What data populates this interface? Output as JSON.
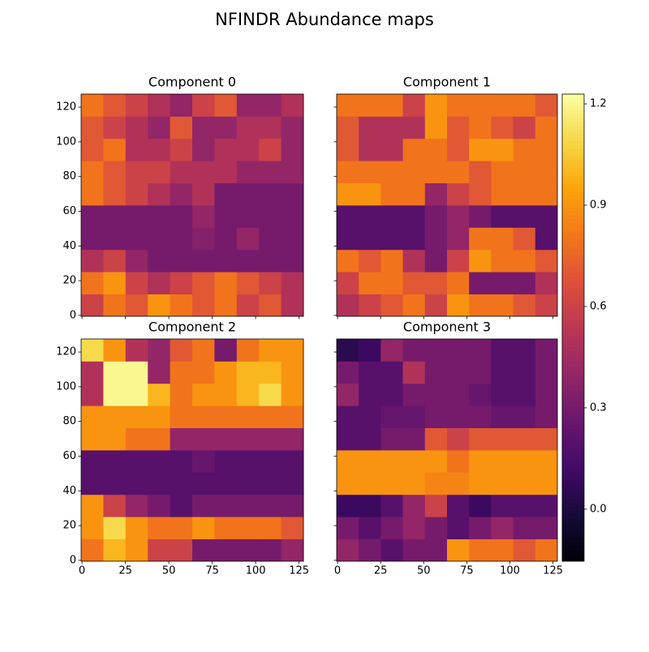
{
  "title": "NFINDR Abundance maps",
  "chart_data": [
    {
      "type": "heatmap",
      "title": "Component 0",
      "xlim": [
        -0.5,
        127.5
      ],
      "ylim": [
        -0.5,
        127.5
      ],
      "xticks": [
        0,
        25,
        50,
        75,
        100,
        125
      ],
      "yticks": [
        0,
        20,
        40,
        60,
        80,
        100,
        120
      ],
      "show_xticklabels": false,
      "show_yticklabels": true,
      "z": [
        [
          0.6,
          0.8,
          0.7,
          0.9,
          0.8,
          0.7,
          0.8,
          0.6,
          0.7,
          0.5
        ],
        [
          0.8,
          0.9,
          0.6,
          0.5,
          0.6,
          0.7,
          0.8,
          0.7,
          0.6,
          0.5
        ],
        [
          0.5,
          0.6,
          0.4,
          0.3,
          0.3,
          0.3,
          0.3,
          0.3,
          0.3,
          0.3
        ],
        [
          0.3,
          0.3,
          0.3,
          0.3,
          0.3,
          0.35,
          0.3,
          0.4,
          0.3,
          0.3
        ],
        [
          0.3,
          0.3,
          0.3,
          0.3,
          0.3,
          0.4,
          0.3,
          0.3,
          0.3,
          0.3
        ],
        [
          0.8,
          0.7,
          0.6,
          0.5,
          0.4,
          0.5,
          0.3,
          0.3,
          0.3,
          0.3
        ],
        [
          0.8,
          0.7,
          0.6,
          0.6,
          0.5,
          0.5,
          0.5,
          0.4,
          0.4,
          0.4
        ],
        [
          0.7,
          0.8,
          0.5,
          0.5,
          0.6,
          0.4,
          0.5,
          0.5,
          0.6,
          0.4
        ],
        [
          0.7,
          0.6,
          0.5,
          0.4,
          0.7,
          0.4,
          0.4,
          0.5,
          0.5,
          0.4
        ],
        [
          0.8,
          0.7,
          0.6,
          0.5,
          0.4,
          0.6,
          0.7,
          0.4,
          0.4,
          0.5
        ]
      ]
    },
    {
      "type": "heatmap",
      "title": "Component 1",
      "xlim": [
        -0.5,
        127.5
      ],
      "ylim": [
        -0.5,
        127.5
      ],
      "xticks": [
        0,
        25,
        50,
        75,
        100,
        125
      ],
      "yticks": [
        0,
        20,
        40,
        60,
        80,
        100,
        120
      ],
      "show_xticklabels": false,
      "show_yticklabels": false,
      "z": [
        [
          0.5,
          0.6,
          0.7,
          0.8,
          0.6,
          0.9,
          0.8,
          0.8,
          0.7,
          0.6
        ],
        [
          0.6,
          0.8,
          0.8,
          0.7,
          0.7,
          0.8,
          0.3,
          0.3,
          0.3,
          0.5
        ],
        [
          0.8,
          0.7,
          0.8,
          0.5,
          0.3,
          0.6,
          0.9,
          0.8,
          0.8,
          0.7
        ],
        [
          0.2,
          0.2,
          0.2,
          0.2,
          0.3,
          0.4,
          0.8,
          0.8,
          0.7,
          0.2
        ],
        [
          0.2,
          0.2,
          0.2,
          0.2,
          0.3,
          0.4,
          0.3,
          0.2,
          0.2,
          0.2
        ],
        [
          0.9,
          0.9,
          0.8,
          0.8,
          0.4,
          0.6,
          0.7,
          0.8,
          0.8,
          0.8
        ],
        [
          0.8,
          0.8,
          0.8,
          0.8,
          0.8,
          0.8,
          0.7,
          0.8,
          0.8,
          0.8
        ],
        [
          0.7,
          0.5,
          0.5,
          0.8,
          0.8,
          0.7,
          0.9,
          0.9,
          0.8,
          0.8
        ],
        [
          0.7,
          0.5,
          0.5,
          0.5,
          0.9,
          0.7,
          0.8,
          0.7,
          0.6,
          0.8
        ],
        [
          0.8,
          0.8,
          0.8,
          0.6,
          0.9,
          0.8,
          0.8,
          0.8,
          0.8,
          0.7
        ]
      ]
    },
    {
      "type": "heatmap",
      "title": "Component 2",
      "xlim": [
        -0.5,
        127.5
      ],
      "ylim": [
        -0.5,
        127.5
      ],
      "xticks": [
        0,
        25,
        50,
        75,
        100,
        125
      ],
      "yticks": [
        0,
        20,
        40,
        60,
        80,
        100,
        120
      ],
      "show_xticklabels": true,
      "show_yticklabels": true,
      "z": [
        [
          0.8,
          1.0,
          0.9,
          0.6,
          0.6,
          0.3,
          0.3,
          0.3,
          0.3,
          0.4
        ],
        [
          0.9,
          1.1,
          0.9,
          0.8,
          0.8,
          0.9,
          0.8,
          0.8,
          0.8,
          0.7
        ],
        [
          0.9,
          0.6,
          0.4,
          0.3,
          0.2,
          0.3,
          0.3,
          0.3,
          0.3,
          0.3
        ],
        [
          0.2,
          0.2,
          0.2,
          0.2,
          0.2,
          0.2,
          0.2,
          0.2,
          0.2,
          0.2
        ],
        [
          0.2,
          0.2,
          0.2,
          0.2,
          0.2,
          0.25,
          0.2,
          0.2,
          0.2,
          0.2
        ],
        [
          0.9,
          0.9,
          0.8,
          0.8,
          0.4,
          0.4,
          0.4,
          0.4,
          0.4,
          0.4
        ],
        [
          0.9,
          0.9,
          0.9,
          0.9,
          0.8,
          0.8,
          0.8,
          0.8,
          0.8,
          0.8
        ],
        [
          0.5,
          1.2,
          1.2,
          1.0,
          0.8,
          0.9,
          0.9,
          1.0,
          1.1,
          0.9
        ],
        [
          0.5,
          1.2,
          1.2,
          0.4,
          0.8,
          0.8,
          0.9,
          1.0,
          1.0,
          0.9
        ],
        [
          1.1,
          0.9,
          0.5,
          0.4,
          0.7,
          0.8,
          0.3,
          0.8,
          0.9,
          0.9
        ]
      ]
    },
    {
      "type": "heatmap",
      "title": "Component 3",
      "xlim": [
        -0.5,
        127.5
      ],
      "ylim": [
        -0.5,
        127.5
      ],
      "xticks": [
        0,
        25,
        50,
        75,
        100,
        125
      ],
      "yticks": [
        0,
        20,
        40,
        60,
        80,
        100,
        120
      ],
      "show_xticklabels": true,
      "show_yticklabels": false,
      "z": [
        [
          0.4,
          0.3,
          0.2,
          0.3,
          0.3,
          0.9,
          0.8,
          0.8,
          0.7,
          0.8
        ],
        [
          0.3,
          0.2,
          0.3,
          0.4,
          0.3,
          0.2,
          0.3,
          0.4,
          0.3,
          0.3
        ],
        [
          0.1,
          0.1,
          0.2,
          0.4,
          0.6,
          0.2,
          0.1,
          0.2,
          0.2,
          0.2
        ],
        [
          0.9,
          0.9,
          0.9,
          0.9,
          0.85,
          0.85,
          0.9,
          0.9,
          0.9,
          0.9
        ],
        [
          0.9,
          0.9,
          0.9,
          0.9,
          0.9,
          0.8,
          0.9,
          0.9,
          0.9,
          0.9
        ],
        [
          0.2,
          0.2,
          0.3,
          0.3,
          0.7,
          0.6,
          0.7,
          0.7,
          0.7,
          0.7
        ],
        [
          0.2,
          0.2,
          0.25,
          0.25,
          0.3,
          0.3,
          0.3,
          0.25,
          0.25,
          0.3
        ],
        [
          0.4,
          0.2,
          0.2,
          0.3,
          0.3,
          0.3,
          0.25,
          0.2,
          0.2,
          0.3
        ],
        [
          0.3,
          0.2,
          0.2,
          0.5,
          0.3,
          0.3,
          0.3,
          0.2,
          0.2,
          0.3
        ],
        [
          0.05,
          0.1,
          0.4,
          0.3,
          0.3,
          0.3,
          0.3,
          0.2,
          0.2,
          0.3
        ]
      ]
    }
  ],
  "colorbar": {
    "colormap": "inferno",
    "clim": [
      -0.154,
      1.229
    ],
    "ticks": [
      {
        "value": 0,
        "label": "0.0"
      },
      0.3,
      0.6,
      0.9,
      1.2
    ]
  }
}
